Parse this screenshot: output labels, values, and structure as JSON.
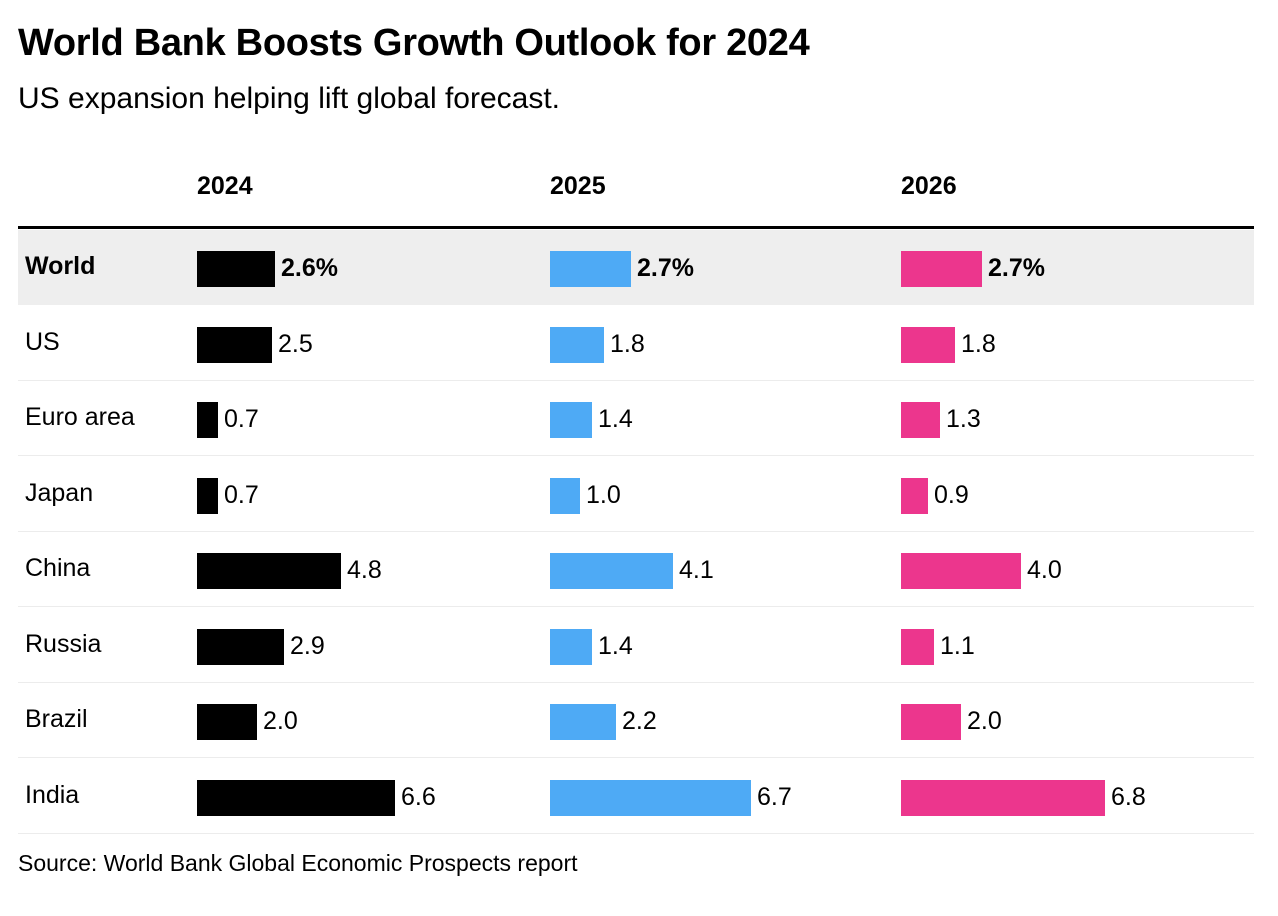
{
  "title": "World Bank Boosts Growth Outlook for 2024",
  "subtitle": "US expansion helping lift global forecast.",
  "source": "Source: World Bank Global Economic Prospects report",
  "colors": {
    "2024": "#000000",
    "2025": "#4eaaf5",
    "2026": "#ec368d"
  },
  "chart_data": {
    "type": "bar",
    "title": "World Bank Boosts Growth Outlook for 2024",
    "subtitle": "US expansion helping lift global forecast.",
    "categories": [
      "World",
      "US",
      "Euro area",
      "Japan",
      "China",
      "Russia",
      "Brazil",
      "India"
    ],
    "series": [
      {
        "name": "2024",
        "values": [
          2.6,
          2.5,
          0.7,
          0.7,
          4.8,
          2.9,
          2.0,
          6.6
        ],
        "labels": [
          "2.6%",
          "2.5",
          "0.7",
          "0.7",
          "4.8",
          "2.9",
          "2.0",
          "6.6"
        ]
      },
      {
        "name": "2025",
        "values": [
          2.7,
          1.8,
          1.4,
          1.0,
          4.1,
          1.4,
          2.2,
          6.7
        ],
        "labels": [
          "2.7%",
          "1.8",
          "1.4",
          "1.0",
          "4.1",
          "1.4",
          "2.2",
          "6.7"
        ]
      },
      {
        "name": "2026",
        "values": [
          2.7,
          1.8,
          1.3,
          0.9,
          4.0,
          1.1,
          2.0,
          6.8
        ],
        "labels": [
          "2.7%",
          "1.8",
          "1.3",
          "0.9",
          "4.0",
          "1.1",
          "2.0",
          "6.8"
        ]
      }
    ],
    "highlighted_category": "World",
    "xlim": [
      0,
      6.8
    ],
    "grid": false,
    "legend": "none"
  }
}
